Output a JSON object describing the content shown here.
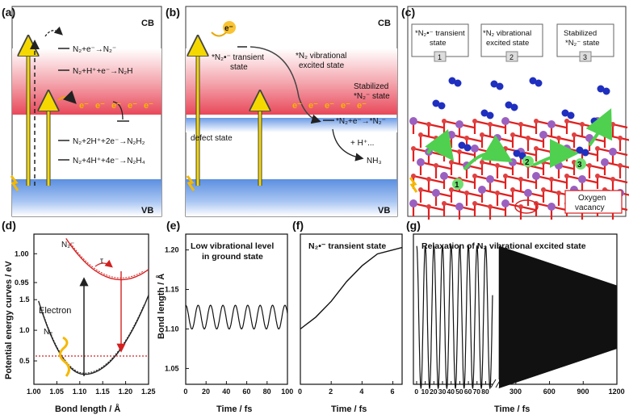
{
  "panels": {
    "a": {
      "tag": "(a)",
      "cb": "CB",
      "vb": "VB",
      "eq1": "N₂+e⁻→N₂⁻",
      "eq2": "N₂+H⁺+e⁻→N₂H",
      "eq3": "N₂+2H⁺+2e⁻→N₂H₂",
      "eq4": "N₂+4H⁺+4e⁻→N₂H₄",
      "electron": "e⁻"
    },
    "b": {
      "tag": "(b)",
      "cb": "CB",
      "vb": "VB",
      "transient": "*N₂•⁻ transient",
      "transient2": "state",
      "vib": "*N₂ vibrational",
      "vib2": "excited state",
      "stab": "Stabilized",
      "stab2": "*N₂⁻ state",
      "defect": "defect state",
      "eq": "*N₂+e⁻→*N₂⁻",
      "hplus": "+ H⁺...",
      "nh3": "NH₃",
      "electron": "e⁻"
    },
    "c": {
      "tag": "(c)",
      "box1": "*N₂•⁻ transient",
      "box1b": "state",
      "box2": "*N₂ vibrational",
      "box2b": "excited state",
      "box3": "Stabilized",
      "box3b": "*N₂⁻ state",
      "n1": "1",
      "n2": "2",
      "n3": "3",
      "oxygen": "Oxygen",
      "vacancy": "vacancy"
    },
    "d": {
      "tag": "(d)",
      "ylabel": "Potential energy curves / eV",
      "xlabel": "Bond length / Å",
      "n2minus": "N₂⁻",
      "n2": "N₂",
      "tau": "τ",
      "electron": "Electron"
    },
    "e": {
      "tag": "(e)",
      "title1": "Low vibrational level",
      "title2": "in ground state",
      "xlabel": "Time / fs",
      "ylabel": "Bond length / Å"
    },
    "f": {
      "tag": "(f)",
      "title": "N₂•⁻ transient  state",
      "xlabel": "Time / fs"
    },
    "g": {
      "tag": "(g)",
      "title": "Relaxation of N₂ vibrational excited state",
      "xlabel": "Time / fs"
    }
  },
  "chart_data": [
    {
      "type": "line",
      "panel": "d",
      "xlim": [
        1.0,
        1.25
      ],
      "xticks": [
        "1.00",
        "1.05",
        "1.10",
        "1.15",
        "1.20",
        "1.25"
      ],
      "yticks_lower": [
        "0.5",
        "1.0",
        "1.5"
      ],
      "yticks_upper": [
        "0.95",
        "1.00"
      ],
      "series": [
        {
          "name": "N₂⁻",
          "color": "#d42020",
          "x": [
            1.08,
            1.1,
            1.15,
            1.2,
            1.22,
            1.25
          ],
          "y": [
            1.02,
            1.0,
            0.96,
            0.955,
            0.96,
            0.985
          ]
        },
        {
          "name": "N₂",
          "color": "#222222",
          "x": [
            1.0,
            1.05,
            1.1,
            1.11,
            1.15,
            1.2,
            1.25
          ],
          "y": [
            1.7,
            0.75,
            0.32,
            0.28,
            0.42,
            0.75,
            1.15
          ]
        }
      ],
      "electron_level": 0.8
    },
    {
      "type": "line",
      "panel": "e",
      "x": [
        0,
        10,
        20,
        30,
        40,
        50,
        60,
        70,
        80,
        90,
        100
      ],
      "xlim": [
        0,
        100
      ],
      "ylim": [
        1.03,
        1.22
      ],
      "xticks": [
        "0",
        "20",
        "40",
        "60",
        "80",
        "100"
      ],
      "yticks": [
        "1.05",
        "1.10",
        "1.15",
        "1.20"
      ],
      "oscillation": {
        "center": 1.115,
        "amplitude": 0.015,
        "periods": 8.2
      }
    },
    {
      "type": "line",
      "panel": "f",
      "x": [
        0,
        1,
        2,
        3,
        4,
        5,
        6,
        6.6
      ],
      "y": [
        1.1,
        1.115,
        1.135,
        1.16,
        1.18,
        1.195,
        1.2,
        1.203
      ],
      "xlim": [
        0,
        6.6
      ],
      "xticks": [
        "0",
        "2",
        "4",
        "6"
      ]
    },
    {
      "type": "line",
      "panel": "g",
      "xticks": [
        "0",
        "10",
        "20",
        "30",
        "40",
        "50",
        "60",
        "70",
        "80",
        "300",
        "600",
        "900",
        "1200"
      ],
      "xlim": [
        0,
        1200
      ],
      "oscillation": {
        "center": 1.115,
        "amplitude_start": 0.09,
        "amplitude_end": 0.04
      }
    }
  ]
}
